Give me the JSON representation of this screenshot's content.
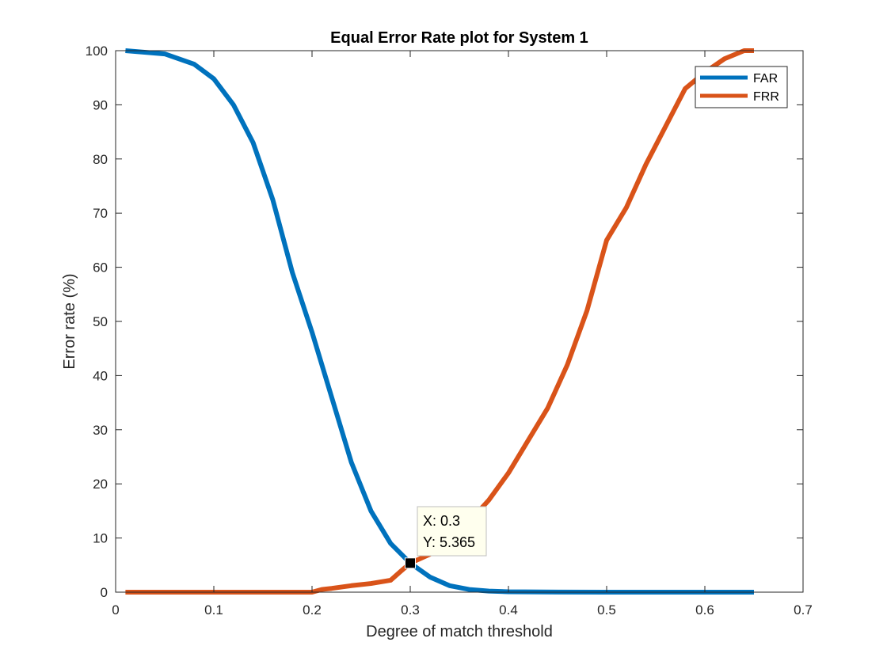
{
  "chart_data": {
    "type": "line",
    "title": "Equal Error Rate plot for System 1",
    "xlabel": "Degree of match threshold",
    "ylabel": "Error rate (%)",
    "xlim": [
      0,
      0.7
    ],
    "ylim": [
      0,
      100
    ],
    "xticks": [
      "0",
      "0.1",
      "0.2",
      "0.3",
      "0.4",
      "0.5",
      "0.6",
      "0.7"
    ],
    "yticks": [
      "0",
      "10",
      "20",
      "30",
      "40",
      "50",
      "60",
      "70",
      "80",
      "90",
      "100"
    ],
    "grid": false,
    "legend_position": "top-right",
    "series": [
      {
        "name": "FAR",
        "color": "#0072BD",
        "x": [
          0.01,
          0.05,
          0.08,
          0.1,
          0.12,
          0.14,
          0.16,
          0.18,
          0.2,
          0.22,
          0.24,
          0.26,
          0.28,
          0.3,
          0.32,
          0.34,
          0.36,
          0.38,
          0.4,
          0.45,
          0.5,
          0.55,
          0.6,
          0.65
        ],
        "y": [
          100,
          99.4,
          97.5,
          94.8,
          90,
          83,
          72.5,
          59,
          48,
          36,
          24,
          15,
          9,
          5.365,
          2.8,
          1.2,
          0.5,
          0.2,
          0.08,
          0.02,
          0,
          0,
          0,
          0
        ]
      },
      {
        "name": "FRR",
        "color": "#D95319",
        "x": [
          0.01,
          0.1,
          0.15,
          0.2,
          0.21,
          0.22,
          0.24,
          0.26,
          0.28,
          0.29,
          0.3,
          0.32,
          0.34,
          0.36,
          0.38,
          0.4,
          0.42,
          0.44,
          0.46,
          0.48,
          0.5,
          0.52,
          0.54,
          0.56,
          0.58,
          0.6,
          0.62,
          0.64,
          0.65
        ],
        "y": [
          0,
          0,
          0,
          0,
          0.5,
          0.7,
          1.2,
          1.6,
          2.2,
          3.8,
          5.365,
          7,
          10,
          13,
          17,
          22,
          28,
          34,
          42,
          52,
          65,
          71,
          79,
          86,
          93,
          96,
          98.5,
          100,
          100
        ]
      }
    ],
    "datatip": {
      "x_text": "X: 0.3",
      "y_text": "Y: 5.365",
      "x": 0.3,
      "y": 5.365
    }
  }
}
